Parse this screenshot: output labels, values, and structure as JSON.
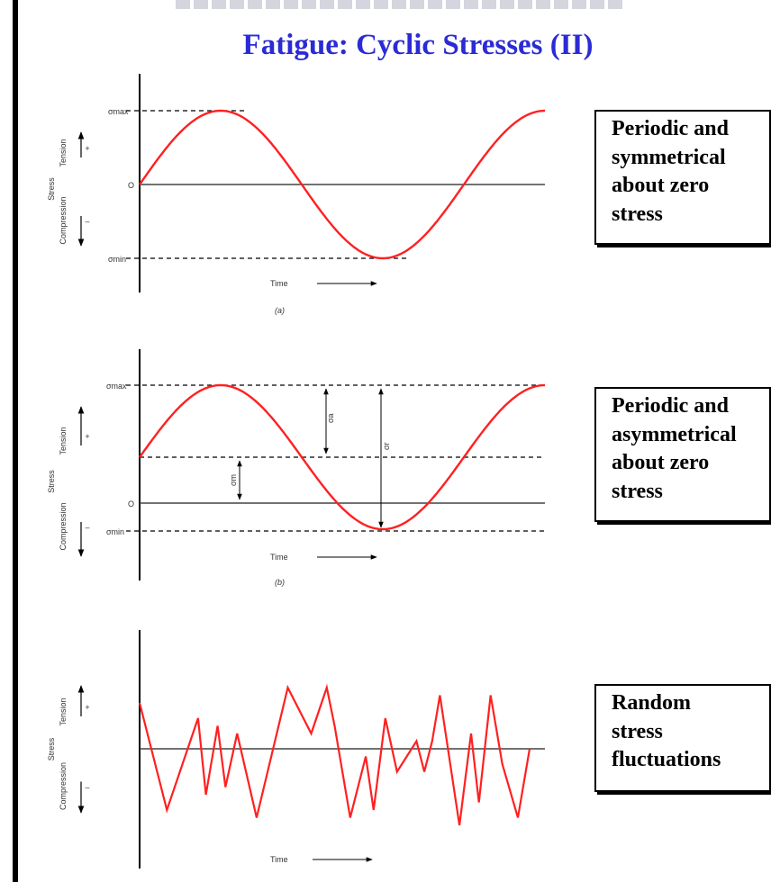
{
  "title": "Fatigue: Cyclic Stresses (II)",
  "colors": {
    "title": "#2b2bd6",
    "curve": "#ff2020",
    "axis": "#000000"
  },
  "panels": [
    {
      "axis_stress": "Stress",
      "axis_tension": "Tension",
      "axis_compression": "Compression",
      "plus": "+",
      "minus": "–",
      "zero": "O",
      "sigma_max": "σmax",
      "sigma_min": "σmin",
      "time": "Time",
      "caption": "(a)",
      "description": [
        "Periodic and",
        "symmetrical",
        "about zero",
        "stress"
      ]
    },
    {
      "axis_stress": "Stress",
      "axis_tension": "Tension",
      "axis_compression": "Compression",
      "plus": "+",
      "minus": "–",
      "zero": "O",
      "sigma_max": "σmax",
      "sigma_min": "σmin",
      "sigma_a": "σa",
      "sigma_m": "σm",
      "sigma_r": "σr",
      "time": "Time",
      "caption": "(b)",
      "description": [
        "Periodic and",
        "asymmetrical",
        "about zero",
        "stress"
      ]
    },
    {
      "axis_stress": "Stress",
      "axis_tension": "Tension",
      "axis_compression": "Compression",
      "plus": "+",
      "minus": "–",
      "time": "Time",
      "description": [
        "Random",
        "stress",
        "fluctuations"
      ]
    }
  ],
  "chart_data": [
    {
      "type": "line",
      "series": [
        {
          "x": [
            0,
            0.25,
            0.5,
            0.75,
            1.0,
            1.25,
            1.5
          ],
          "y": [
            0,
            1,
            0,
            -1,
            0,
            1,
            0.5
          ]
        }
      ],
      "levels": {
        "max": 1,
        "mean": 0,
        "min": -1
      },
      "ylim": [
        -1.5,
        1.5
      ]
    },
    {
      "type": "line",
      "series": [
        {
          "x": [
            0,
            0.25,
            0.5,
            0.75,
            1.0,
            1.25,
            1.5
          ],
          "y": [
            0.4,
            1,
            0.4,
            -0.2,
            0.4,
            1,
            0.7
          ]
        }
      ],
      "levels": {
        "max": 1,
        "mean": 0.4,
        "zero": 0,
        "min": -0.2
      },
      "ylim": [
        -0.6,
        1.4
      ]
    },
    {
      "type": "line",
      "series": [
        {
          "x": [
            0,
            0.07,
            0.15,
            0.17,
            0.2,
            0.22,
            0.25,
            0.3,
            0.38,
            0.44,
            0.48,
            0.5,
            0.54,
            0.58,
            0.6,
            0.63,
            0.66,
            0.71,
            0.73,
            0.75,
            0.77,
            0.82,
            0.85,
            0.87,
            0.9,
            0.93,
            0.97,
            1.0
          ],
          "y": [
            0.6,
            -0.8,
            0.4,
            -0.6,
            0.3,
            -0.5,
            0.2,
            -0.9,
            0.8,
            0.2,
            0.8,
            0.3,
            -0.9,
            -0.1,
            -0.8,
            0.4,
            -0.3,
            0.1,
            -0.3,
            0.1,
            0.7,
            -1.0,
            0.2,
            -0.7,
            0.7,
            -0.2,
            -0.9,
            0
          ]
        }
      ],
      "levels": {
        "zero": 0
      },
      "ylim": [
        -1.3,
        1.3
      ]
    }
  ]
}
